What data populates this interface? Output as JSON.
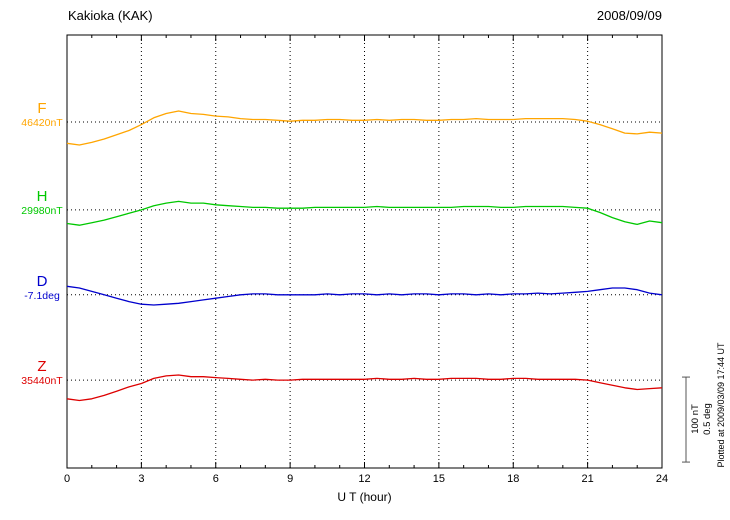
{
  "header": {
    "title": "Kakioka (KAK)",
    "date": "2008/09/09"
  },
  "footer": {
    "plotted_at": "Plotted at 2009/03/09 17:44 UT"
  },
  "chart_data": {
    "type": "line",
    "title": "Kakioka (KAK)",
    "date": "2008/09/09",
    "xlabel": "U T (hour)",
    "xlim": [
      0,
      24
    ],
    "x_ticks": [
      0,
      3,
      6,
      9,
      12,
      15,
      18,
      21,
      24
    ],
    "grid": "dotted vertical lines every 3 h, dotted horizontal baseline per trace",
    "scale_bar": {
      "nT_label": "100 nT",
      "deg_label": "0.5 deg",
      "nT": 100,
      "deg": 0.5,
      "px": 85
    },
    "x": [
      0,
      0.5,
      1,
      1.5,
      2,
      2.5,
      3,
      3.5,
      4,
      4.5,
      5,
      5.5,
      6,
      6.5,
      7,
      7.5,
      8,
      8.5,
      9,
      9.5,
      10,
      10.5,
      11,
      11.5,
      12,
      12.5,
      13,
      13.5,
      14,
      14.5,
      15,
      15.5,
      16,
      16.5,
      17,
      17.5,
      18,
      18.5,
      19,
      19.5,
      20,
      20.5,
      21,
      21.5,
      22,
      22.5,
      23,
      23.5,
      24
    ],
    "series": [
      {
        "name": "F",
        "baseline_label": "46420nT",
        "unit": "nT",
        "color": "#FFA500",
        "baseline_frac": 0.201,
        "y": [
          -25,
          -27,
          -24,
          -20,
          -15,
          -10,
          -3,
          5,
          10,
          13,
          10,
          9,
          7,
          6,
          4,
          3,
          3,
          2,
          1,
          2,
          2,
          3,
          3,
          2,
          2,
          3,
          2,
          3,
          3,
          2,
          2,
          3,
          3,
          4,
          3,
          3,
          3,
          4,
          4,
          4,
          4,
          3,
          1,
          -3,
          -8,
          -13,
          -14,
          -12,
          -13
        ]
      },
      {
        "name": "H",
        "baseline_label": "29980nT",
        "unit": "nT",
        "color": "#00C800",
        "baseline_frac": 0.404,
        "y": [
          -16,
          -18,
          -15,
          -12,
          -8,
          -4,
          0,
          5,
          8,
          10,
          8,
          8,
          6,
          5,
          4,
          3,
          3,
          2,
          2,
          2,
          3,
          3,
          3,
          3,
          3,
          4,
          3,
          3,
          3,
          3,
          3,
          3,
          4,
          4,
          4,
          3,
          3,
          4,
          4,
          4,
          4,
          3,
          2,
          -3,
          -9,
          -14,
          -17,
          -13,
          -15
        ]
      },
      {
        "name": "D",
        "baseline_label": "-7.1deg",
        "unit": "deg",
        "color": "#0000CD",
        "baseline_frac": 0.6,
        "y": [
          0.05,
          0.04,
          0.02,
          0,
          -0.02,
          -0.04,
          -0.055,
          -0.06,
          -0.055,
          -0.05,
          -0.04,
          -0.03,
          -0.02,
          -0.01,
          0,
          0.005,
          0.005,
          0,
          0,
          0,
          0,
          0.005,
          0,
          0.005,
          0.005,
          0,
          0.005,
          0,
          0.005,
          0.005,
          0,
          0.005,
          0.005,
          0,
          0.005,
          0,
          0.005,
          0.005,
          0.01,
          0.005,
          0.01,
          0.015,
          0.02,
          0.03,
          0.04,
          0.04,
          0.03,
          0.01,
          0
        ]
      },
      {
        "name": "Z",
        "baseline_label": "35440nT",
        "unit": "nT",
        "color": "#DD0000",
        "baseline_frac": 0.797,
        "y": [
          -22,
          -24,
          -22,
          -18,
          -13,
          -8,
          -4,
          2,
          5,
          6,
          4,
          4,
          3,
          2,
          1,
          0,
          1,
          0,
          0,
          1,
          1,
          1,
          1,
          1,
          1,
          2,
          1,
          1,
          2,
          1,
          1,
          2,
          2,
          2,
          1,
          1,
          2,
          2,
          1,
          1,
          1,
          1,
          0,
          -3,
          -6,
          -9,
          -11,
          -10,
          -9
        ]
      }
    ]
  }
}
